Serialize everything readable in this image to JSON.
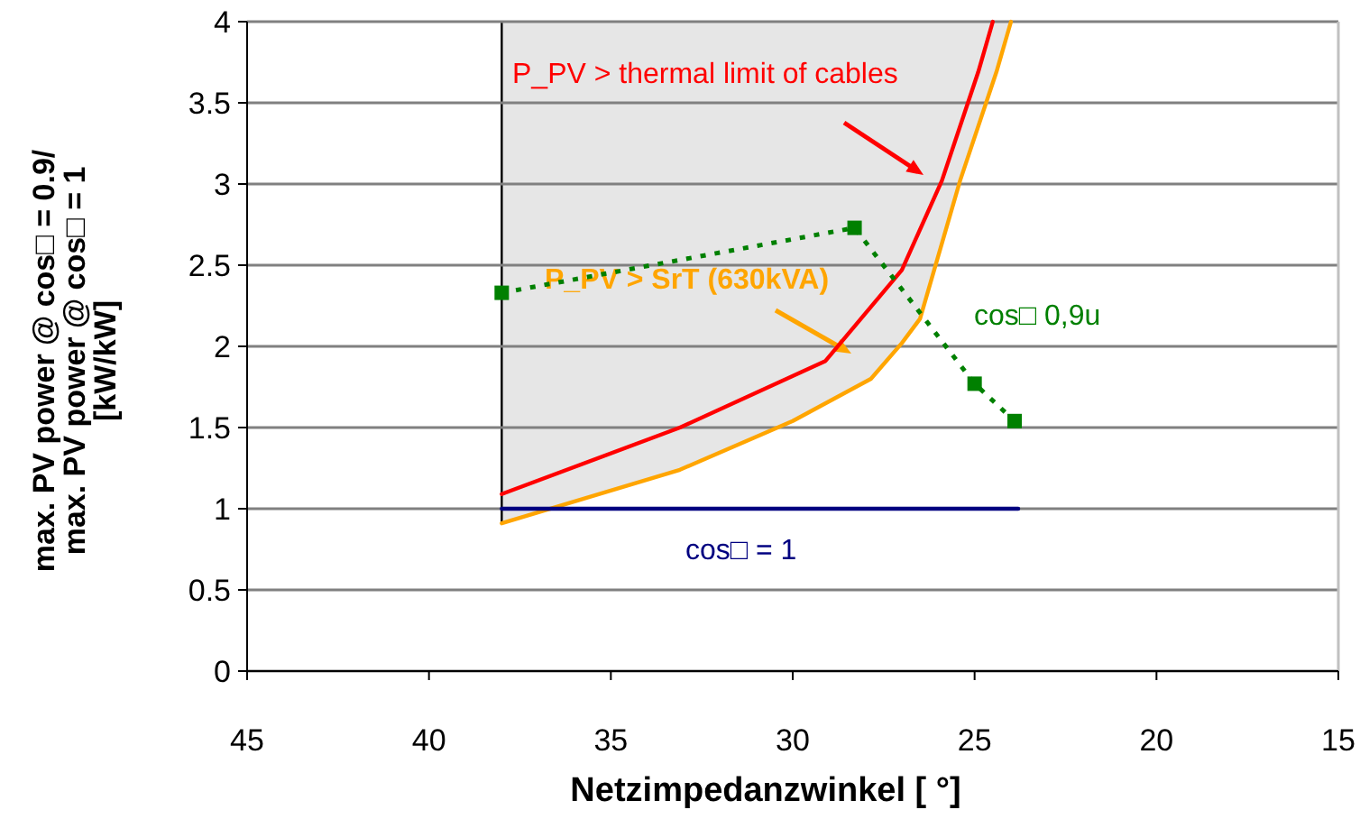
{
  "chart_data": {
    "type": "line",
    "xlabel": "Netzimpedanzwinkel [ °]",
    "ylabel": "max. PV power @ cos□ = 0.9/\nmax. PV power @ cos□ = 1\n[kW/kW]",
    "xlim": [
      45,
      15
    ],
    "xticks": [
      45,
      40,
      35,
      30,
      25,
      20,
      15
    ],
    "ylim": [
      0,
      4
    ],
    "yticks": [
      0,
      0.5,
      1,
      1.5,
      2,
      2.5,
      3,
      3.5,
      4
    ],
    "grid": "y",
    "legend": false,
    "ref_lines": [
      {
        "axis": "x",
        "value": 38,
        "color": "#000000"
      }
    ],
    "series": [
      {
        "name": "P_PV > SrT (630kVA)",
        "color": "#ffa500",
        "x": [
          38,
          33.1,
          30,
          27.85,
          27,
          26.5,
          25.4,
          24.4,
          24
        ],
        "values": [
          0.91,
          1.24,
          1.54,
          1.8,
          2.02,
          2.17,
          3.02,
          3.69,
          4
        ]
      },
      {
        "name": "P_PV > thermal limit of cables",
        "color": "#ff0000",
        "x": [
          38,
          33.1,
          29.1,
          27,
          25.9,
          24.9,
          24.5
        ],
        "values": [
          1.09,
          1.5,
          1.91,
          2.47,
          3.02,
          3.69,
          4
        ]
      },
      {
        "name": "cos□ = 1",
        "color": "#000080",
        "x": [
          38,
          23.8
        ],
        "values": [
          1,
          1
        ]
      },
      {
        "name": "cos□ 0,9u",
        "color": "#008000",
        "marker": "square",
        "line_style": "dotted",
        "x": [
          38,
          28.3,
          25,
          23.9
        ],
        "values": [
          2.33,
          2.73,
          1.77,
          1.54
        ]
      }
    ]
  }
}
